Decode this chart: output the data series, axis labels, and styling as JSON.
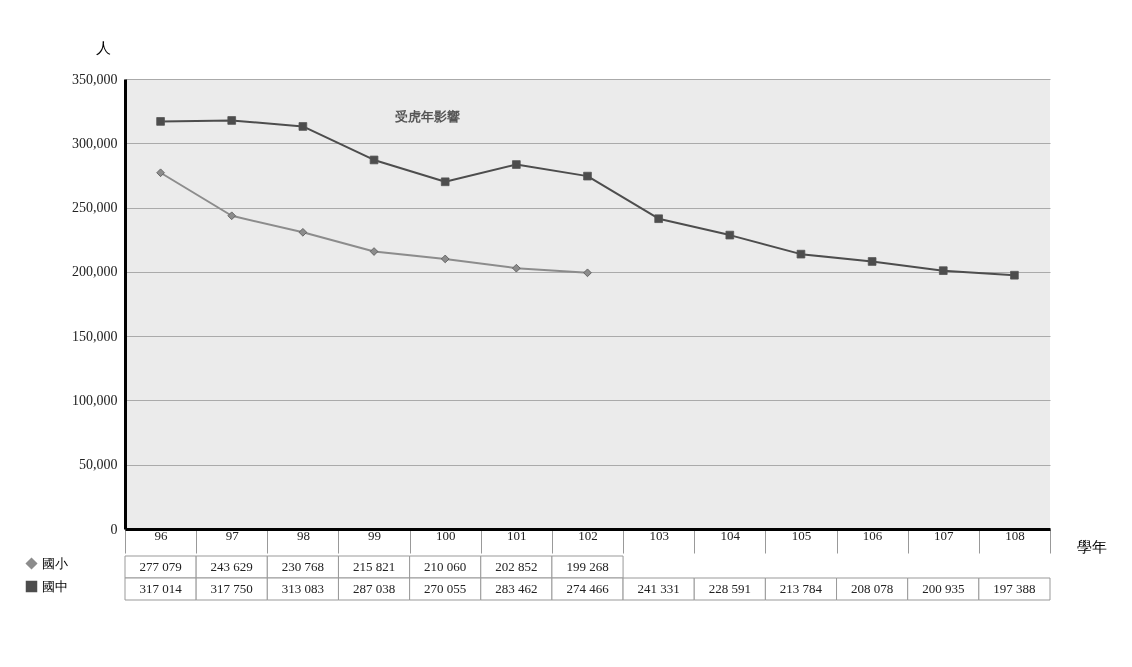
{
  "chart_data": {
    "type": "line",
    "ylabel": "人",
    "xlabel": "學年",
    "annotations": [
      "受虎年影響"
    ],
    "categories": [
      "96",
      "97",
      "98",
      "99",
      "100",
      "101",
      "102",
      "103",
      "104",
      "105",
      "106",
      "107",
      "108"
    ],
    "series": [
      {
        "name": "國小",
        "color": "#8c8c8c",
        "marker": "diamond",
        "values": [
          277079,
          243629,
          230768,
          215821,
          210060,
          202852,
          199268,
          null,
          null,
          null,
          null,
          null,
          null
        ],
        "value_labels": [
          "277 079",
          "243 629",
          "230 768",
          "215 821",
          "210 060",
          "202 852",
          "199 268",
          null,
          null,
          null,
          null,
          null,
          null
        ]
      },
      {
        "name": "國中",
        "color": "#4d4d4d",
        "marker": "square",
        "values": [
          317014,
          317750,
          313083,
          287038,
          270055,
          283462,
          274466,
          241331,
          228591,
          213784,
          208078,
          200935,
          197388
        ],
        "value_labels": [
          "317 014",
          "317 750",
          "313 083",
          "287 038",
          "270 055",
          "283 462",
          "274 466",
          "241 331",
          "228 591",
          "213 784",
          "208 078",
          "200 935",
          "197 388"
        ]
      }
    ],
    "ylim": [
      0,
      350000
    ],
    "yticks": [
      0,
      {
        "value": 50000,
        "label": "50,000"
      },
      {
        "value": 100000,
        "label": "100,000"
      },
      {
        "value": 150000,
        "label": "150,000"
      },
      {
        "value": 200000,
        "label": "200,000"
      },
      {
        "value": 250000,
        "label": "250,000"
      },
      {
        "value": 300000,
        "label": "300,000"
      },
      {
        "value": 350000,
        "label": "350,000"
      }
    ],
    "grid": "y",
    "legend": "bottom left"
  }
}
